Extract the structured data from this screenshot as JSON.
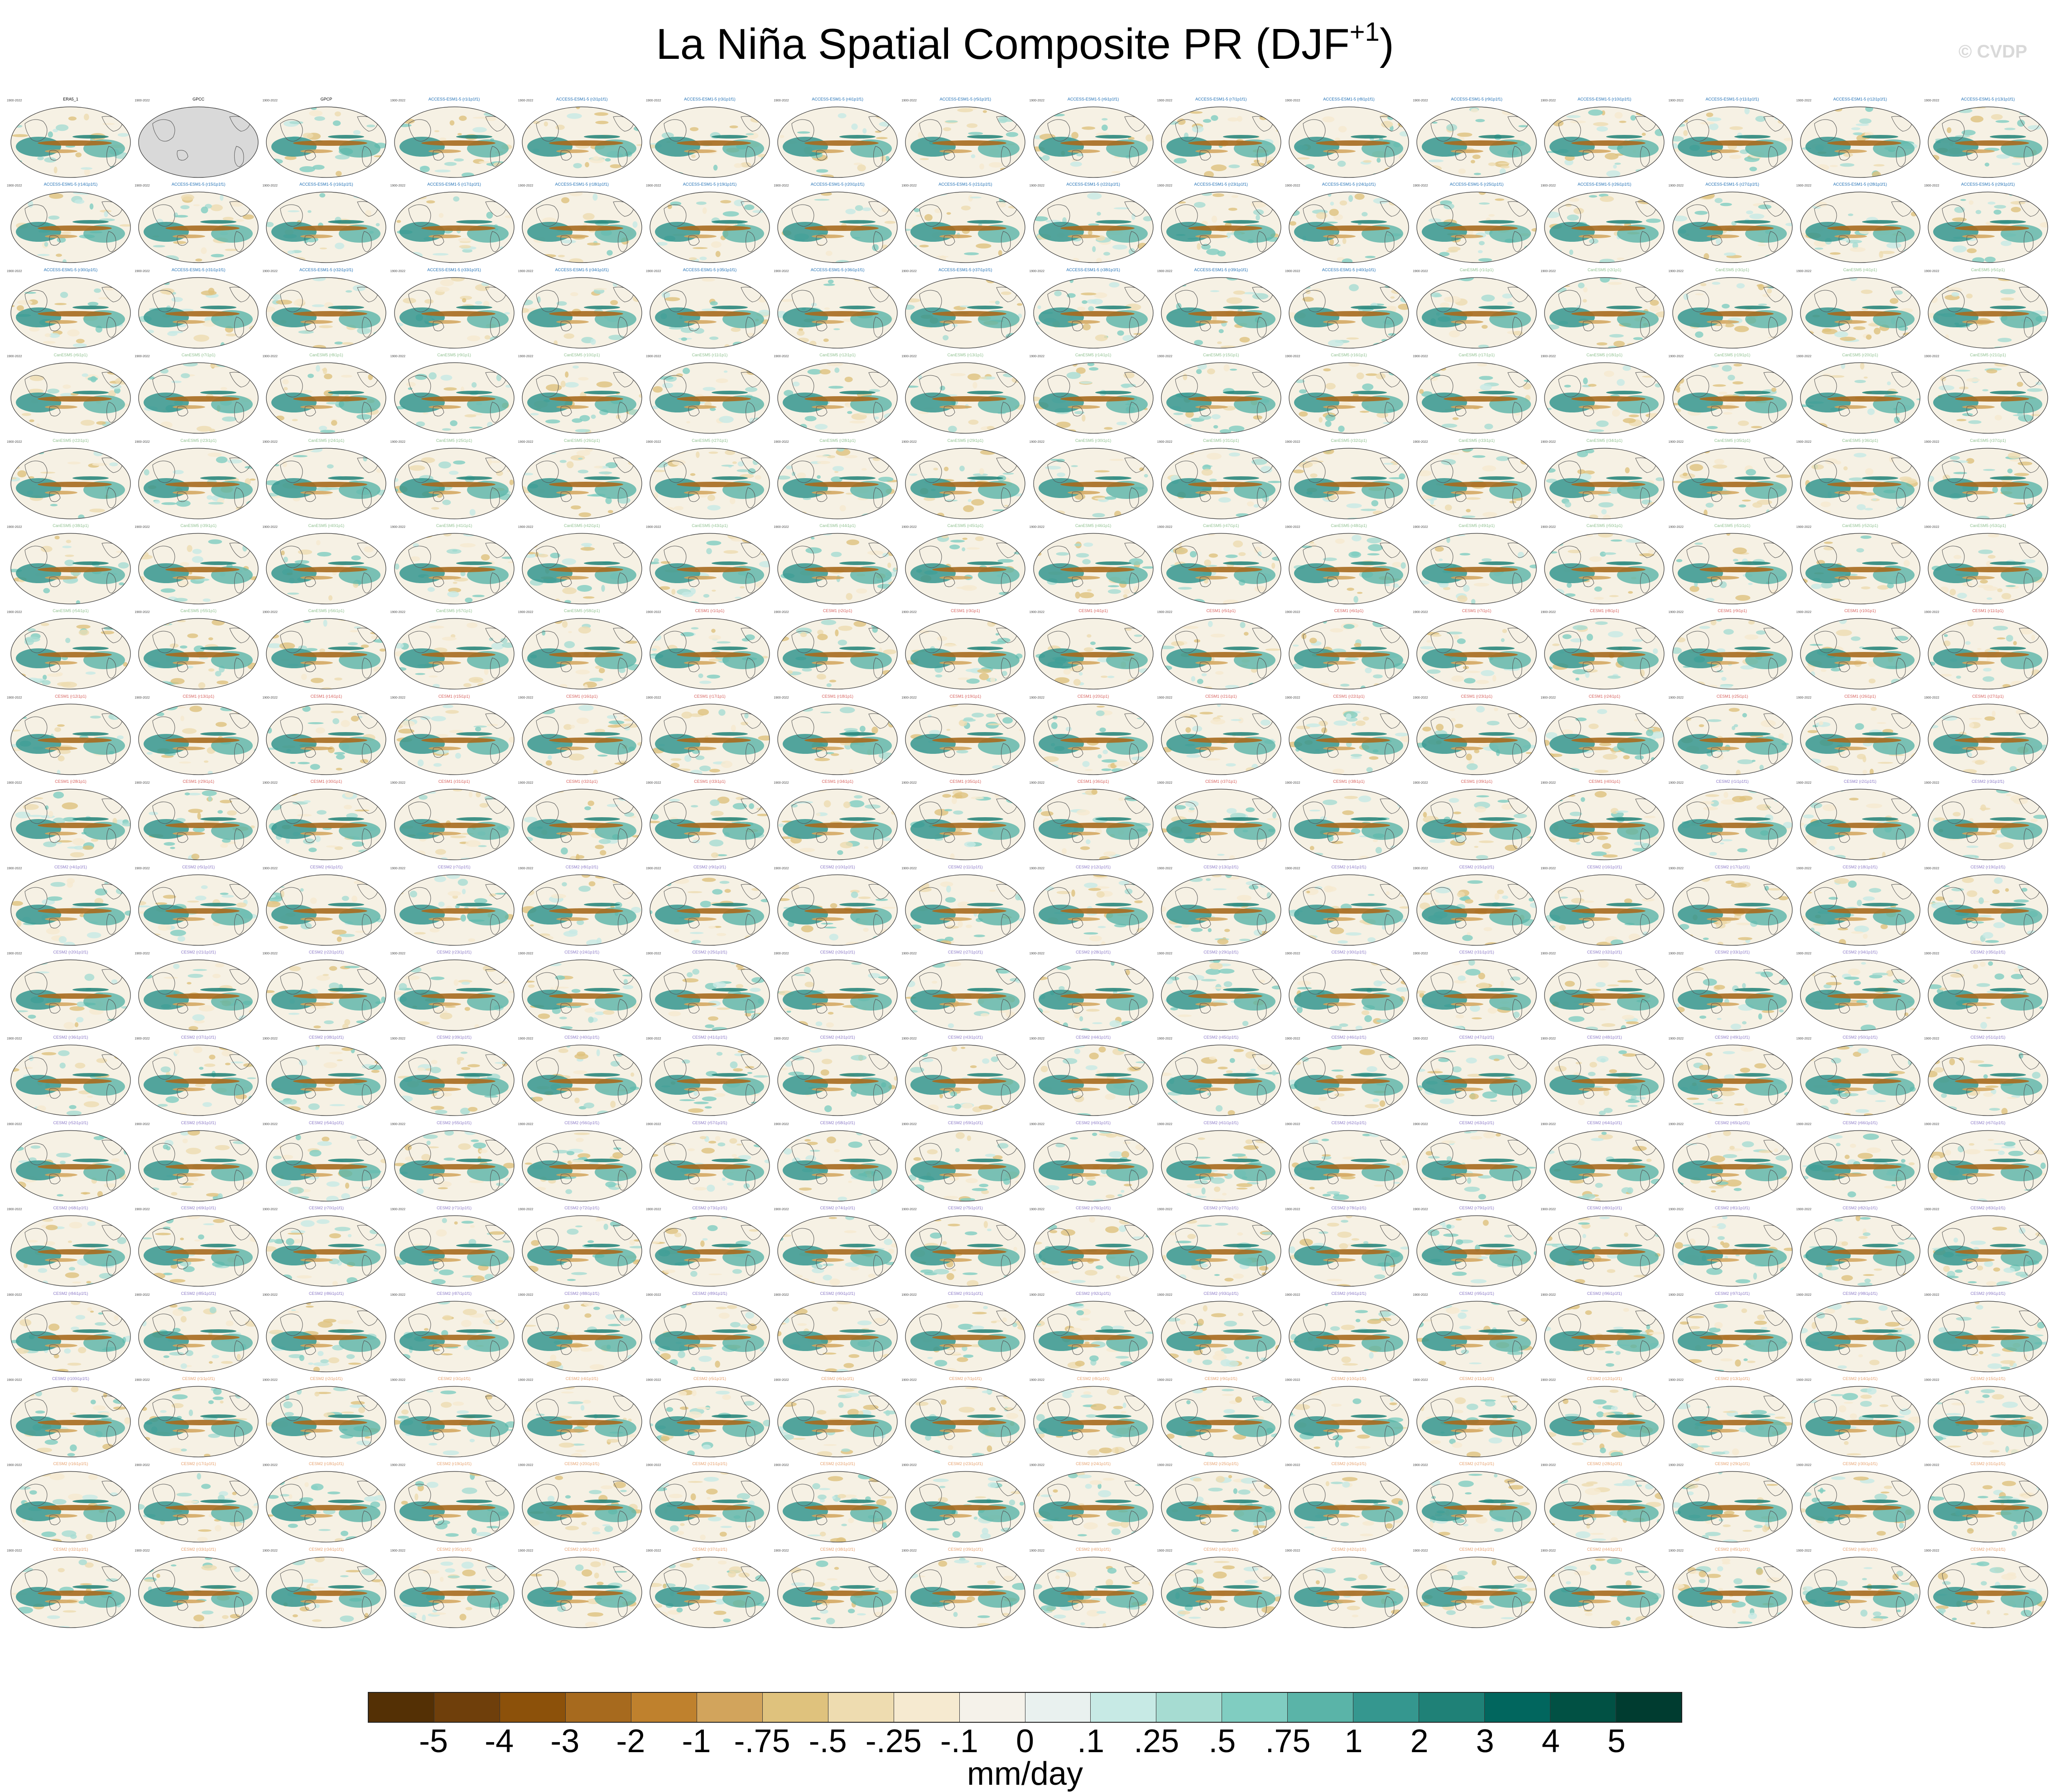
{
  "title": "La Niña Spatial Composite PR (DJF",
  "title_superscript": "+1",
  "title_close": ")",
  "watermark": "© CVDP",
  "panels": {
    "rows": 18,
    "cols": 16,
    "period_text": "1900-2022",
    "observations": [
      "ERA5_1",
      "GPCC",
      "GPCP"
    ],
    "observation_title_color": "#000000",
    "model_families": [
      {
        "name": "ACCESS-ESM1-5",
        "title_color": "#1f6fb4",
        "member_format": "(r{n}i1p1f1)",
        "count": 40
      },
      {
        "name": "CanESM5",
        "title_color": "#8fc08f",
        "member_format": "(r{n}i1p1)",
        "count": 58
      },
      {
        "name": "CESM1",
        "title_color": "#d6605c",
        "member_format": "(r{n}i1p1)",
        "count": 40
      },
      {
        "name": "CESM2",
        "title_color": "#8b79c6",
        "member_format": "(r{n}i1p1f1)",
        "count": 100
      },
      {
        "name": "CESM2",
        "title_color": "#e6a06c",
        "member_format": "(r{n}i1p1f1)",
        "count": 47
      }
    ],
    "blank_panels": [
      1
    ]
  },
  "colorbar": {
    "units": "mm/day",
    "tick_labels": [
      "-5",
      "-4",
      "-3",
      "-2",
      "-1",
      "-.75",
      "-.5",
      "-.25",
      "-.1",
      "0",
      ".1",
      ".25",
      ".5",
      ".75",
      "1",
      "2",
      "3",
      "4",
      "5"
    ],
    "colors": [
      "#543005",
      "#6f3f0b",
      "#8c510a",
      "#a76a1e",
      "#bf812d",
      "#d2a45c",
      "#dfc27d",
      "#eedcb0",
      "#f6ead0",
      "#f5f2ea",
      "#e9f1ef",
      "#c7eae5",
      "#a6dcd2",
      "#80cdc1",
      "#5ab4a8",
      "#35978f",
      "#1f8177",
      "#01665e",
      "#015144",
      "#003c30"
    ]
  }
}
